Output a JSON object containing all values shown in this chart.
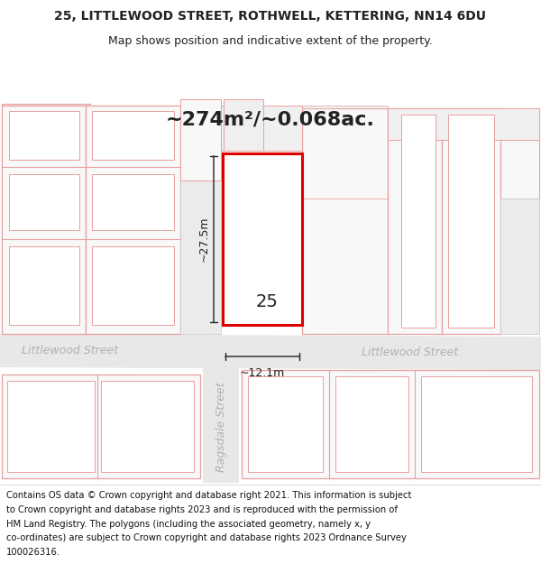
{
  "title_line1": "25, LITTLEWOOD STREET, ROTHWELL, KETTERING, NN14 6DU",
  "title_line2": "Map shows position and indicative extent of the property.",
  "area_text": "~274m²/~0.068ac.",
  "width_label": "~12.1m",
  "height_label": "~27.5m",
  "number_label": "25",
  "street_name_left": "Littlewood Street",
  "street_name_right": "Littlewood Street",
  "street_name_ragsdale": "Ragsdale Street",
  "footer_lines": [
    "Contains OS data © Crown copyright and database right 2021. This information is subject",
    "to Crown copyright and database rights 2023 and is reproduced with the permission of",
    "HM Land Registry. The polygons (including the associated geometry, namely x, y",
    "co-ordinates) are subject to Crown copyright and database rights 2023 Ordnance Survey",
    "100026316."
  ],
  "bg_color": "#ffffff",
  "map_bg": "#ffffff",
  "street_fill": "#e8e8e8",
  "plot_edge_pink": "#e8a0a0",
  "plot_fill_light": "#ffffff",
  "highlight_edge": "#dd0000",
  "highlight_fill": "#ffffff",
  "dim_color": "#222222",
  "label_color": "#222222",
  "street_label_color": "#b0b0b0",
  "footer_color": "#111111",
  "title_bold_size": 10,
  "title_sub_size": 9,
  "area_fontsize": 16,
  "number_fontsize": 14,
  "dim_fontsize": 9,
  "street_fontsize": 9,
  "footer_fontsize": 7.2
}
